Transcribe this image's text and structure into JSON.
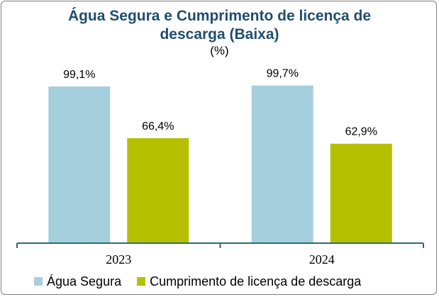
{
  "chart_data": {
    "type": "bar",
    "title_line1": "Água  Segura e Cumprimento de licença de",
    "title_line2": "descarga (Baixa)",
    "unit": "(%)",
    "categories": [
      "2023",
      "2024"
    ],
    "series": [
      {
        "name": "Água Segura",
        "color": "#a6cfdd",
        "values": [
          99.1,
          99.7
        ],
        "labels": [
          "99,1%",
          "99,7%"
        ]
      },
      {
        "name": "Cumprimento de licença de descarga",
        "color": "#b5c000",
        "values": [
          66.4,
          62.9
        ],
        "labels": [
          "66,4%",
          "62,9%"
        ]
      }
    ],
    "ylim": [
      0,
      100
    ],
    "axis_color": "#2e6b73",
    "grid": false,
    "legend_position": "bottom"
  }
}
